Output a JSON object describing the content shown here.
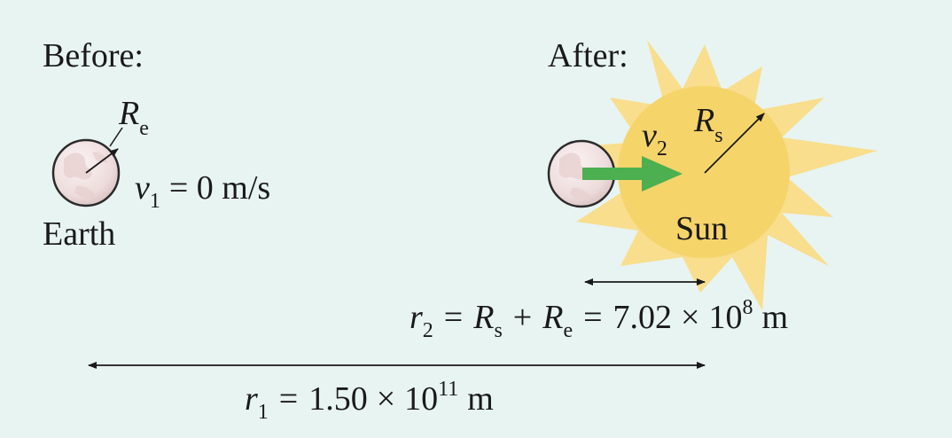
{
  "diagram": {
    "before_heading": "Before:",
    "after_heading": "After:",
    "earth_radius_symbol": "R",
    "earth_radius_sub": "e",
    "earth_label": "Earth",
    "v1_symbol": "v",
    "v1_sub": "1",
    "v1_value": "= 0 m/s",
    "v2_symbol": "v",
    "v2_sub": "2",
    "sun_radius_symbol": "R",
    "sun_radius_sub": "s",
    "sun_label": "Sun",
    "r2": {
      "symbol": "r",
      "sub": "2",
      "eq1": "=",
      "rs": "R",
      "rs_sub": "s",
      "plus": "+",
      "re": "R",
      "re_sub": "e",
      "eq2": "=",
      "value": "7.02",
      "times": "×",
      "base": "10",
      "exp": "8",
      "unit": "m"
    },
    "r1": {
      "symbol": "r",
      "sub": "1",
      "eq": "=",
      "value": "1.50",
      "times": "×",
      "base": "10",
      "exp": "11",
      "unit": "m"
    },
    "colors": {
      "background": "#e8f4f1",
      "sun": "#f5d46a",
      "sun_rays": "#f9dc82",
      "velocity_arrow": "#4caf50",
      "earth": "#efdede"
    }
  }
}
